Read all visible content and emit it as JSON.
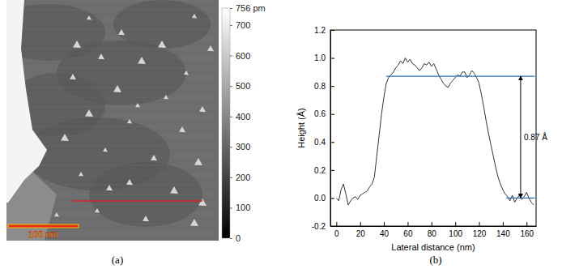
{
  "chart_data": [
    {
      "type": "image",
      "caption": "(a)",
      "scale_bar": "100 nm",
      "colorbar_range": [
        0,
        756
      ],
      "colorbar_ticks": [
        0,
        100,
        200,
        300,
        400,
        500,
        600,
        700,
        {
          "value": 756,
          "label": "756 pm"
        }
      ]
    },
    {
      "type": "line",
      "caption": "(b)",
      "x_label": "Lateral distance (nm)",
      "y_label": "Height (Å)",
      "xlim": [
        -5,
        168
      ],
      "xticks": [
        0,
        20,
        40,
        60,
        80,
        100,
        120,
        140,
        160
      ],
      "ylim": [
        -0.2,
        1.2
      ],
      "yticks": [
        -0.2,
        {
          "value": 0,
          "label": "0.0"
        },
        0.2,
        0.4,
        0.6,
        0.8,
        {
          "value": 1,
          "label": "1.0"
        },
        1.2
      ],
      "color": "#333333",
      "x": [
        0,
        2,
        4,
        6,
        8,
        10,
        12,
        14,
        16,
        18,
        20,
        22,
        24,
        26,
        28,
        30,
        32,
        34,
        36,
        38,
        40,
        42,
        44,
        46,
        48,
        50,
        52,
        54,
        56,
        58,
        60,
        62,
        64,
        66,
        68,
        70,
        72,
        74,
        76,
        78,
        80,
        82,
        84,
        86,
        88,
        90,
        92,
        94,
        96,
        98,
        100,
        102,
        104,
        106,
        108,
        110,
        112,
        114,
        116,
        118,
        120,
        122,
        124,
        126,
        128,
        130,
        132,
        134,
        136,
        138,
        140,
        142,
        144,
        146,
        148,
        150,
        152,
        154,
        156,
        158,
        160,
        162,
        164,
        166
      ],
      "values": [
        0.0,
        -0.02,
        0.06,
        0.1,
        0.03,
        -0.05,
        -0.02,
        0.0,
        0.01,
        -0.01,
        0.02,
        0.03,
        0.04,
        0.05,
        0.08,
        0.1,
        0.15,
        0.3,
        0.45,
        0.6,
        0.72,
        0.82,
        0.86,
        0.88,
        0.9,
        0.93,
        0.95,
        0.98,
        0.96,
        1.0,
        0.97,
        0.99,
        0.96,
        0.95,
        0.93,
        0.91,
        0.93,
        0.96,
        0.95,
        0.97,
        0.94,
        0.96,
        0.92,
        0.88,
        0.85,
        0.82,
        0.8,
        0.79,
        0.82,
        0.84,
        0.86,
        0.88,
        0.87,
        0.9,
        0.9,
        0.86,
        0.88,
        0.91,
        0.89,
        0.86,
        0.82,
        0.74,
        0.65,
        0.55,
        0.46,
        0.38,
        0.3,
        0.22,
        0.15,
        0.1,
        0.06,
        0.03,
        0.01,
        -0.02,
        0.02,
        -0.03,
        0.0,
        0.02,
        -0.01,
        0.01,
        0.04,
        0.0,
        -0.03,
        -0.05
      ],
      "reference_lines": [
        {
          "y": 0.87,
          "x": [
            42,
            167
          ],
          "color": "#2a73b8"
        },
        {
          "y": 0,
          "x": [
            143,
            167
          ],
          "color": "#2a73b8"
        }
      ],
      "annotations": [
        {
          "text": "0.87 Å",
          "x": 155,
          "y": [
            0,
            0.87
          ]
        }
      ]
    }
  ]
}
